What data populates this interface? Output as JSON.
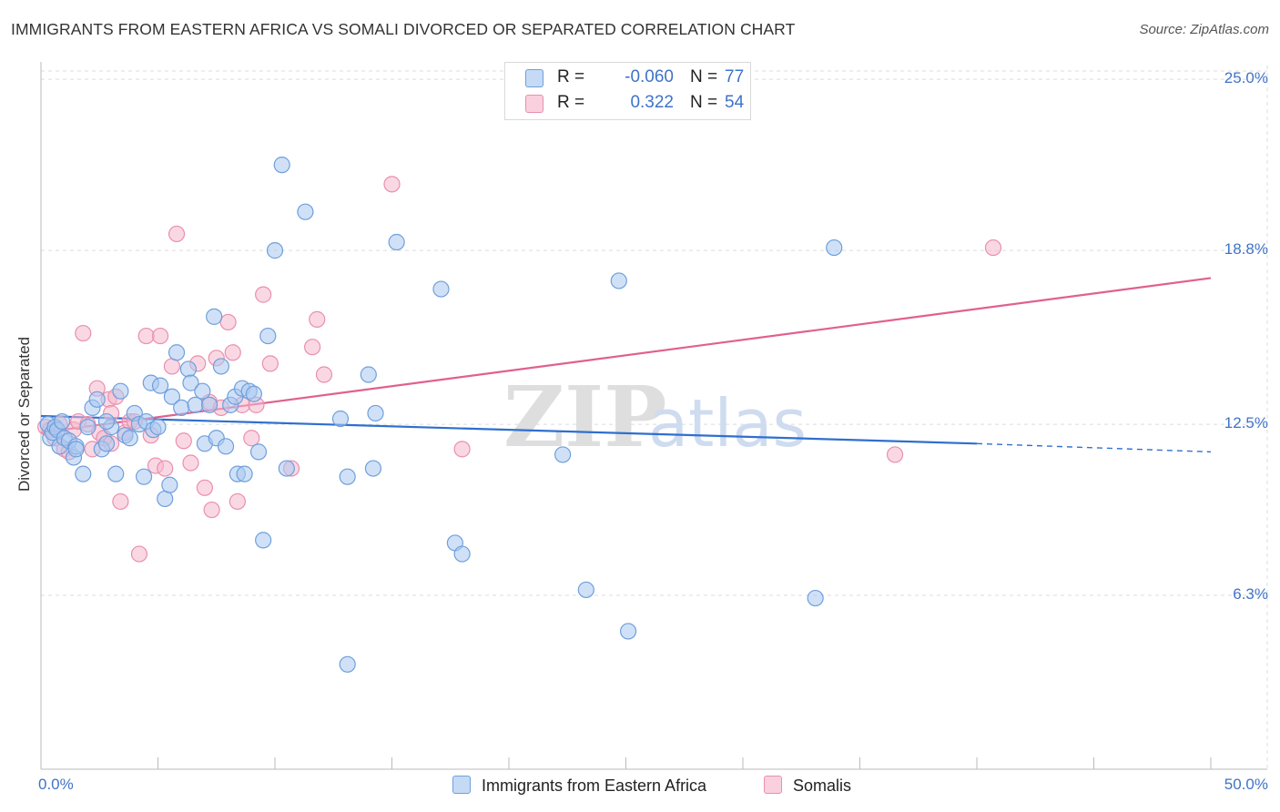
{
  "title": "IMMIGRANTS FROM EASTERN AFRICA VS SOMALI DIVORCED OR SEPARATED CORRELATION CHART",
  "source": "Source: ZipAtlas.com",
  "colors": {
    "blue_fill": "#a9c8f0",
    "blue_stroke": "#6f9fdc",
    "blue_line": "#2f6fcf",
    "pink_fill": "#f5b8cc",
    "pink_stroke": "#e98fae",
    "pink_line": "#e0608f",
    "tick_text": "#3f73c8"
  },
  "legend": {
    "rows": [
      {
        "r_label": "R =",
        "r_value": "-0.060",
        "n_label": "N =",
        "n_value": "77"
      },
      {
        "r_label": "R =",
        "r_value": "0.322",
        "n_label": "N =",
        "n_value": "54"
      }
    ]
  },
  "watermark": {
    "zip": "ZIP",
    "atlas": "atlas"
  },
  "chart_data": {
    "type": "scatter",
    "xlabel": "",
    "ylabel": "Divorced or Separated",
    "xlim": [
      0,
      50
    ],
    "ylim": [
      0,
      25.5
    ],
    "x_tick_labels": [
      "0.0%",
      "50.0%"
    ],
    "y_ticks": [
      6.3,
      12.5,
      18.8,
      25.0
    ],
    "y_tick_labels": [
      "6.3%",
      "12.5%",
      "18.8%",
      "25.0%"
    ],
    "grid": true,
    "series": [
      {
        "name": "Immigrants from Eastern Africa",
        "color": "blue",
        "trend": {
          "x0": 0,
          "y0": 12.8,
          "x1": 40,
          "y1": 11.8,
          "dashed_to_x": 50,
          "dashed_to_y": 11.5
        },
        "points": [
          [
            0.3,
            12.5
          ],
          [
            0.4,
            12.0
          ],
          [
            0.5,
            12.2
          ],
          [
            0.6,
            12.4
          ],
          [
            0.7,
            12.3
          ],
          [
            0.8,
            11.7
          ],
          [
            0.9,
            12.6
          ],
          [
            1.0,
            12.0
          ],
          [
            1.2,
            11.9
          ],
          [
            1.4,
            11.3
          ],
          [
            1.5,
            11.7
          ],
          [
            1.8,
            10.7
          ],
          [
            2.0,
            12.4
          ],
          [
            2.2,
            13.1
          ],
          [
            2.4,
            13.4
          ],
          [
            2.6,
            11.6
          ],
          [
            2.8,
            11.8
          ],
          [
            3.0,
            12.4
          ],
          [
            3.2,
            10.7
          ],
          [
            3.4,
            13.7
          ],
          [
            3.6,
            12.1
          ],
          [
            3.8,
            12.0
          ],
          [
            4.0,
            12.9
          ],
          [
            4.2,
            12.5
          ],
          [
            4.4,
            10.6
          ],
          [
            4.5,
            12.6
          ],
          [
            4.7,
            14.0
          ],
          [
            4.8,
            12.3
          ],
          [
            5.0,
            12.4
          ],
          [
            5.1,
            13.9
          ],
          [
            5.3,
            9.8
          ],
          [
            5.5,
            10.3
          ],
          [
            5.6,
            13.5
          ],
          [
            5.8,
            15.1
          ],
          [
            6.0,
            13.1
          ],
          [
            6.3,
            14.5
          ],
          [
            6.4,
            14.0
          ],
          [
            6.6,
            13.2
          ],
          [
            6.9,
            13.7
          ],
          [
            7.0,
            11.8
          ],
          [
            7.2,
            13.2
          ],
          [
            7.4,
            16.4
          ],
          [
            7.5,
            12.0
          ],
          [
            7.7,
            14.6
          ],
          [
            7.9,
            11.7
          ],
          [
            8.1,
            13.2
          ],
          [
            8.3,
            13.5
          ],
          [
            8.4,
            10.7
          ],
          [
            8.6,
            13.8
          ],
          [
            8.7,
            10.7
          ],
          [
            8.9,
            13.7
          ],
          [
            9.1,
            13.6
          ],
          [
            9.3,
            11.5
          ],
          [
            9.5,
            8.3
          ],
          [
            9.7,
            15.7
          ],
          [
            10.0,
            18.8
          ],
          [
            10.3,
            21.9
          ],
          [
            10.5,
            10.9
          ],
          [
            11.3,
            20.2
          ],
          [
            12.8,
            12.7
          ],
          [
            13.1,
            10.6
          ],
          [
            14.0,
            14.3
          ],
          [
            14.2,
            10.9
          ],
          [
            14.3,
            12.9
          ],
          [
            15.2,
            19.1
          ],
          [
            17.1,
            17.4
          ],
          [
            17.7,
            8.2
          ],
          [
            18.0,
            7.8
          ],
          [
            22.3,
            11.4
          ],
          [
            23.3,
            6.5
          ],
          [
            24.7,
            17.7
          ],
          [
            25.1,
            5.0
          ],
          [
            33.1,
            6.2
          ],
          [
            33.9,
            18.9
          ],
          [
            13.1,
            3.8
          ],
          [
            1.5,
            11.6
          ],
          [
            2.8,
            12.6
          ]
        ]
      },
      {
        "name": "Somalis",
        "color": "pink",
        "trend": {
          "x0": 0,
          "y0": 12.2,
          "x1": 50,
          "y1": 17.8
        },
        "points": [
          [
            0.2,
            12.4
          ],
          [
            0.4,
            12.3
          ],
          [
            0.6,
            12.0
          ],
          [
            0.8,
            12.5
          ],
          [
            1.0,
            11.6
          ],
          [
            1.2,
            11.5
          ],
          [
            1.4,
            12.3
          ],
          [
            1.6,
            12.6
          ],
          [
            1.8,
            15.8
          ],
          [
            2.0,
            12.5
          ],
          [
            2.2,
            11.6
          ],
          [
            2.4,
            13.8
          ],
          [
            2.5,
            12.2
          ],
          [
            2.7,
            12.0
          ],
          [
            2.9,
            13.4
          ],
          [
            3.0,
            11.8
          ],
          [
            3.2,
            13.5
          ],
          [
            3.4,
            9.7
          ],
          [
            3.6,
            12.2
          ],
          [
            3.8,
            12.6
          ],
          [
            4.0,
            12.6
          ],
          [
            4.2,
            7.8
          ],
          [
            4.5,
            15.7
          ],
          [
            4.7,
            12.1
          ],
          [
            4.9,
            11.0
          ],
          [
            5.1,
            15.7
          ],
          [
            5.3,
            10.9
          ],
          [
            5.6,
            14.6
          ],
          [
            5.8,
            19.4
          ],
          [
            6.1,
            11.9
          ],
          [
            6.4,
            11.1
          ],
          [
            6.7,
            14.7
          ],
          [
            7.0,
            10.2
          ],
          [
            7.2,
            13.3
          ],
          [
            7.3,
            9.4
          ],
          [
            7.5,
            14.9
          ],
          [
            7.7,
            13.1
          ],
          [
            8.0,
            16.2
          ],
          [
            8.2,
            15.1
          ],
          [
            8.4,
            9.7
          ],
          [
            8.6,
            13.2
          ],
          [
            9.0,
            12.0
          ],
          [
            9.2,
            13.2
          ],
          [
            9.5,
            17.2
          ],
          [
            9.8,
            14.7
          ],
          [
            10.7,
            10.9
          ],
          [
            11.6,
            15.3
          ],
          [
            11.8,
            16.3
          ],
          [
            12.1,
            14.3
          ],
          [
            15.0,
            21.2
          ],
          [
            18.0,
            11.6
          ],
          [
            36.5,
            11.4
          ],
          [
            40.7,
            18.9
          ],
          [
            3.0,
            12.9
          ]
        ]
      }
    ]
  },
  "bottom_legend": {
    "series1_label": "Immigrants from Eastern Africa",
    "series2_label": "Somalis"
  }
}
